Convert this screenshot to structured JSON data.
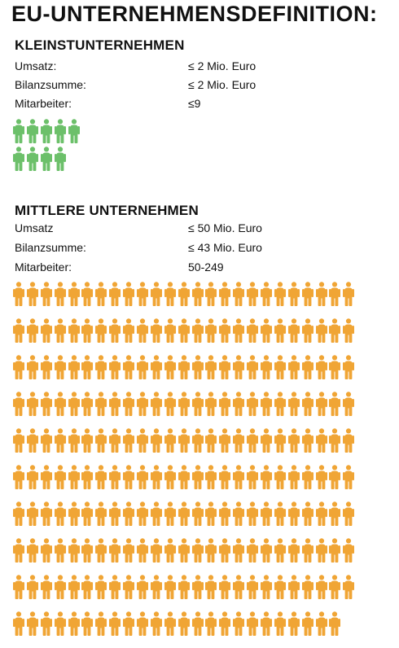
{
  "title": "EU-UNTERNEHMENSDEFINITION:",
  "colors": {
    "small": "#6cc06a",
    "medium": "#f0a535",
    "text": "#111111"
  },
  "icon": "person-icon",
  "kleinst": {
    "heading": "KLEINSTUNTERNEHMEN",
    "rows": [
      {
        "label": "Umsatz:",
        "value": "≤ 2 Mio. Euro"
      },
      {
        "label": "Bilanzsumme:",
        "value": "≤ 2 Mio. Euro"
      },
      {
        "label": "Mitarbeiter:",
        "value": "≤9"
      }
    ],
    "person_count": 9,
    "per_row": 5
  },
  "mittlere": {
    "heading": "MITTLERE UNTERNEHMEN",
    "rows": [
      {
        "label": "Umsatz",
        "value": "≤ 50 Mio. Euro"
      },
      {
        "label": "Bilanzsumme:",
        "value": "≤ 43 Mio. Euro"
      },
      {
        "label": "Mitarbeiter:",
        "value": "50-249"
      }
    ],
    "person_count": 249,
    "per_row": 25
  }
}
